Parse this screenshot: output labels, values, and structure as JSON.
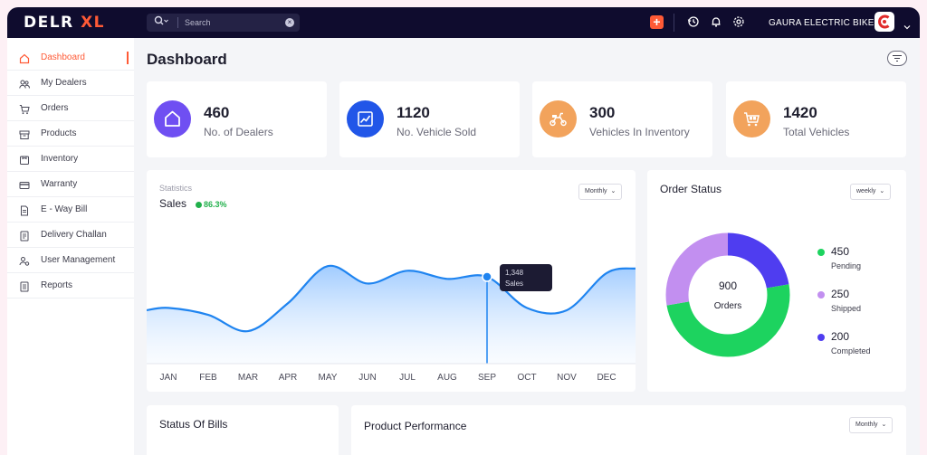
{
  "brand": {
    "name_a": "DELR ",
    "name_b": "XL"
  },
  "search": {
    "placeholder": "Search"
  },
  "header": {
    "company": "GAURA ELECTRIC BIKES"
  },
  "colors": {
    "accent": "#ff5a36",
    "topbar": "#0f0c2e",
    "active_nav": "#ff5a36"
  },
  "sidebar": {
    "items": [
      {
        "label": "Dashboard",
        "icon": "home-icon",
        "active": true
      },
      {
        "label": "My Dealers",
        "icon": "users-icon"
      },
      {
        "label": "Orders",
        "icon": "cart-icon"
      },
      {
        "label": "Products",
        "icon": "box-icon"
      },
      {
        "label": "Inventory",
        "icon": "inventory-icon"
      },
      {
        "label": "Warranty",
        "icon": "card-icon"
      },
      {
        "label": "E - Way Bill",
        "icon": "document-icon"
      },
      {
        "label": "Delivery Challan",
        "icon": "receipt-icon"
      },
      {
        "label": "User Management",
        "icon": "user-manage-icon"
      },
      {
        "label": "Reports",
        "icon": "report-icon"
      }
    ]
  },
  "page": {
    "title": "Dashboard"
  },
  "stats": [
    {
      "value": "460",
      "label": "No. of Dealers",
      "color": "#6f4ff2",
      "icon": "home-icon"
    },
    {
      "value": "1120",
      "label": "No. Vehicle Sold",
      "color": "#2156e8",
      "icon": "chart-icon"
    },
    {
      "value": "300",
      "label": "Vehicles In Inventory",
      "color": "#f2a35c",
      "icon": "scooter-icon"
    },
    {
      "value": "1420",
      "label": "Total Vehicles",
      "color": "#f2a35c",
      "icon": "cart-icon"
    }
  ],
  "sales": {
    "subtitle": "Statistics",
    "title": "Sales",
    "change": "86.3%",
    "period": "Monthly",
    "tooltip_value": "1,348",
    "tooltip_label": "Sales",
    "tooltip_month_index": 8
  },
  "chart_data": {
    "type": "area",
    "categories": [
      "JAN",
      "FEB",
      "MAR",
      "APR",
      "MAY",
      "JUN",
      "JUL",
      "AUG",
      "SEP",
      "OCT",
      "NOV",
      "DEC"
    ],
    "values": [
      1080,
      1020,
      880,
      1120,
      1440,
      1290,
      1400,
      1330,
      1348,
      1080,
      1060,
      1380
    ],
    "ylim": [
      600,
      1800
    ],
    "highlight": {
      "category": "SEP",
      "value": 1348
    }
  },
  "order_status": {
    "title": "Order Status",
    "period": "weekly",
    "total": "900",
    "total_label": "Orders",
    "items": [
      {
        "value": 450,
        "label": "Pending",
        "color": "#1dd35f"
      },
      {
        "value": 250,
        "label": "Shipped",
        "color": "#c28ff0"
      },
      {
        "value": 200,
        "label": "Completed",
        "color": "#4f3df0"
      }
    ]
  },
  "bills": {
    "title": "Status Of Bills"
  },
  "performance": {
    "title": "Product Performance",
    "period": "Monthly"
  }
}
